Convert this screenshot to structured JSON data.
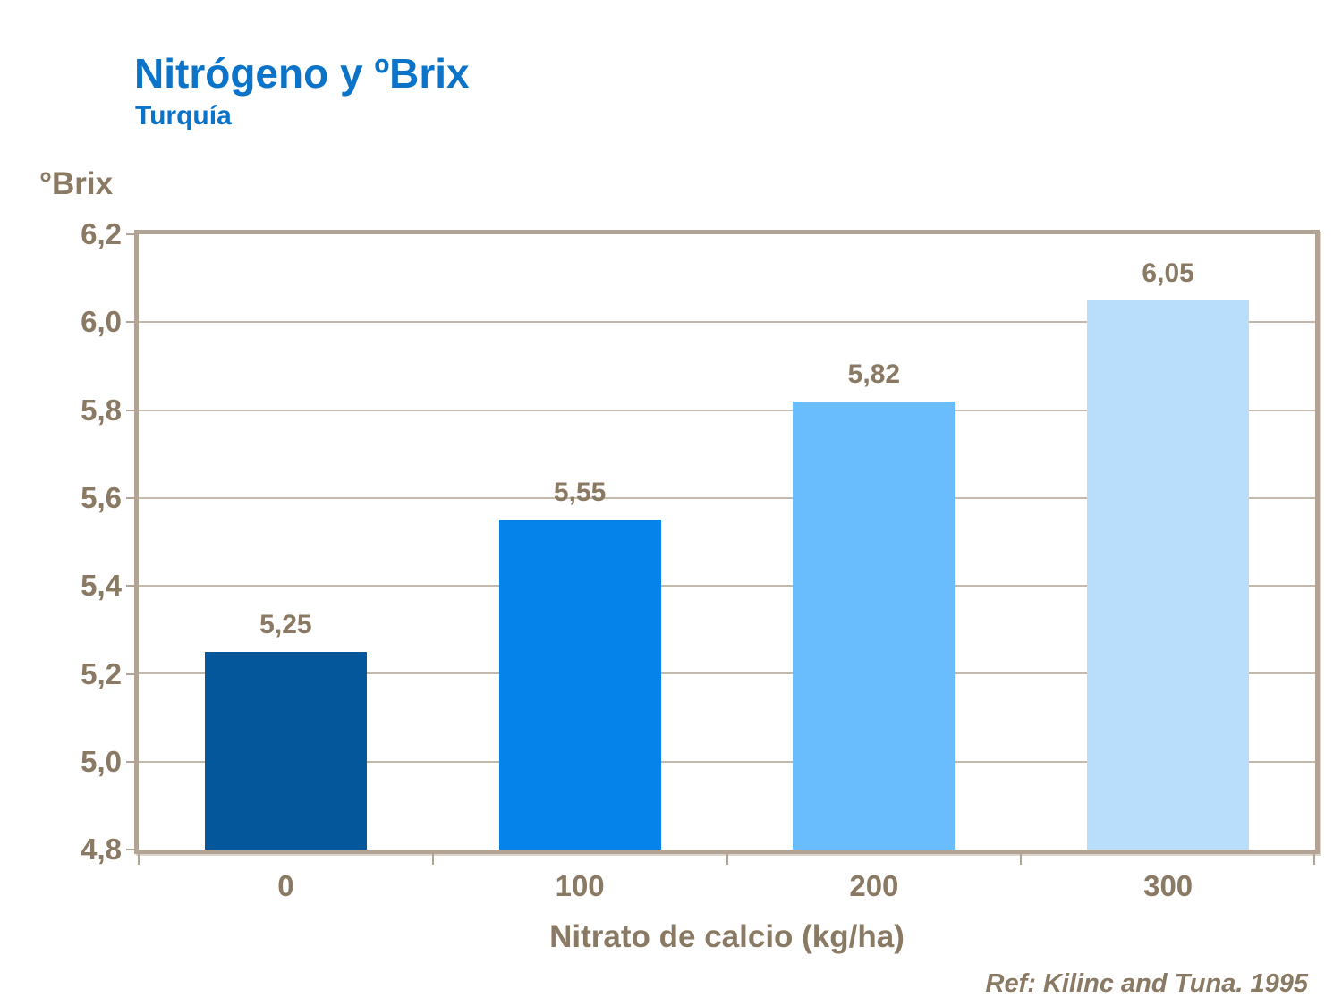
{
  "header": {
    "title": "Nitrógeno y ºBrix",
    "subtitle": "Turquía"
  },
  "footer": {
    "reference": "Ref: Kilinc and Tuna. 1995"
  },
  "colors": {
    "title_blue": "#0b74c8",
    "text_brown": "#8a7963",
    "axis_frame": "#b1a494",
    "gridline": "#b7ab9c",
    "bars": [
      "#04579a",
      "#0583ea",
      "#6abdfc",
      "#b8defc"
    ]
  },
  "chart_data": {
    "type": "bar",
    "title": "Nitrógeno y ºBrix",
    "subtitle": "Turquía",
    "categories": [
      "0",
      "100",
      "200",
      "300"
    ],
    "values": [
      5.25,
      5.55,
      5.82,
      6.05
    ],
    "value_labels": [
      "5,25",
      "5,55",
      "5,82",
      "6,05"
    ],
    "xlabel": "Nitrato de calcio (kg/ha)",
    "ylabel": "°Brix",
    "ylim": [
      4.8,
      6.2
    ],
    "ytick_step": 0.2,
    "ytick_labels": [
      "6,2",
      "6,0",
      "5,8",
      "5,6",
      "5,4",
      "5,2",
      "5,0",
      "4,8"
    ],
    "grid": "horizontal",
    "legend": "none"
  }
}
